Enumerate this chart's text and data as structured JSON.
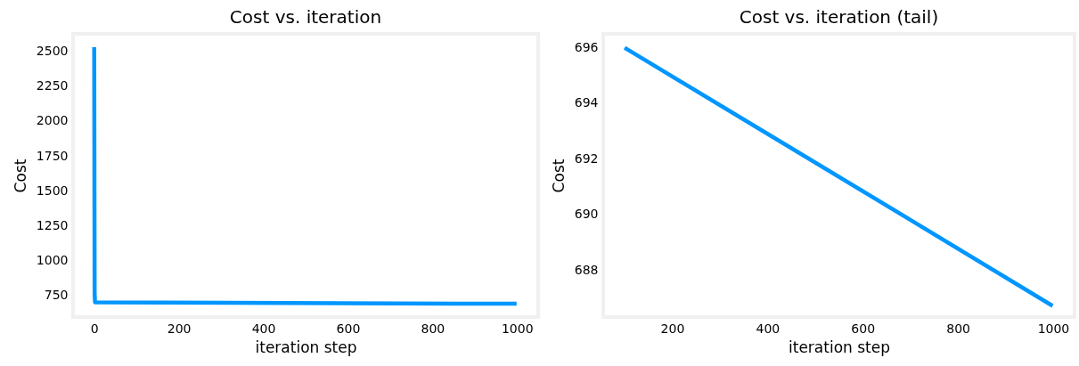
{
  "chart_data": [
    {
      "type": "line",
      "title": "Cost vs. iteration",
      "xlabel": "iteration step",
      "ylabel": "Cost",
      "x": [
        0,
        1,
        2,
        999
      ],
      "series": [
        {
          "color": "#0096ff",
          "values": [
            2530,
            760,
            700,
            690
          ]
        }
      ],
      "xlim": [
        -50,
        1050
      ],
      "ylim": [
        595,
        2625
      ],
      "xticks": [
        0,
        200,
        400,
        600,
        800,
        1000
      ],
      "yticks": [
        750,
        1000,
        1250,
        1500,
        1750,
        2000,
        2250,
        2500
      ],
      "line_style": "solid"
    },
    {
      "type": "line",
      "title": "Cost vs. iteration (tail)",
      "xlabel": "iteration step",
      "ylabel": "Cost",
      "x": [
        100,
        400,
        700,
        999
      ],
      "series": [
        {
          "color": "#0096ff",
          "values": [
            696.0,
            692.9,
            689.8,
            686.7
          ]
        }
      ],
      "xlim": [
        55,
        1045
      ],
      "ylim": [
        686.3,
        696.5
      ],
      "xticks": [
        200,
        400,
        600,
        800,
        1000
      ],
      "yticks": [
        688,
        690,
        692,
        694,
        696
      ],
      "line_style": "solid"
    }
  ]
}
